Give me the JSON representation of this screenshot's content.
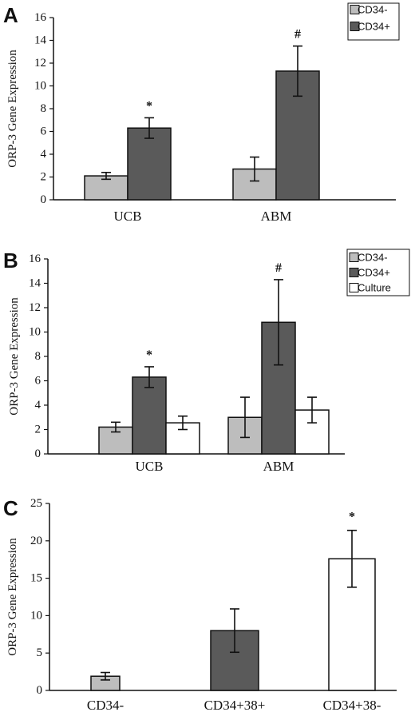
{
  "colors": {
    "light": "#bdbdbd",
    "dark": "#5a5a5a",
    "white": "#ffffff",
    "axis": "#111111"
  },
  "chart_data": [
    {
      "panel": "A",
      "type": "bar",
      "ylabel": "ORP-3 Gene Expression",
      "ylim": [
        0,
        16
      ],
      "yticks": [
        "0",
        "2",
        "4",
        "6",
        "8",
        "10",
        "12",
        "14",
        "16"
      ],
      "categories": [
        "UCB",
        "ABM"
      ],
      "series": [
        {
          "name": "CD34-",
          "color": "light",
          "values": [
            2.1,
            2.7
          ],
          "errors": [
            0.3,
            1.05
          ]
        },
        {
          "name": "CD34+",
          "color": "dark",
          "values": [
            6.3,
            11.3
          ],
          "errors": [
            0.9,
            2.2
          ]
        }
      ],
      "annotations": [
        {
          "category": 0,
          "series": 1,
          "text": "*"
        },
        {
          "category": 1,
          "series": 1,
          "text": "#"
        }
      ],
      "legend": "top-right"
    },
    {
      "panel": "B",
      "type": "bar",
      "ylabel": "ORP-3 Gene Expression",
      "ylim": [
        0,
        16
      ],
      "yticks": [
        "0",
        "2",
        "4",
        "6",
        "8",
        "10",
        "12",
        "14",
        "16"
      ],
      "categories": [
        "UCB",
        "ABM"
      ],
      "series": [
        {
          "name": "CD34-",
          "color": "light",
          "values": [
            2.2,
            3.0
          ],
          "errors": [
            0.4,
            1.65
          ]
        },
        {
          "name": "CD34+",
          "color": "dark",
          "values": [
            6.3,
            10.8
          ],
          "errors": [
            0.85,
            3.5
          ]
        },
        {
          "name": "Culture",
          "color": "white",
          "values": [
            2.55,
            3.6
          ],
          "errors": [
            0.55,
            1.05
          ]
        }
      ],
      "annotations": [
        {
          "category": 0,
          "series": 1,
          "text": "*"
        },
        {
          "category": 1,
          "series": 1,
          "text": "#"
        }
      ],
      "legend": "top-right"
    },
    {
      "panel": "C",
      "type": "bar",
      "ylabel": "ORP-3 Gene Expression",
      "ylim": [
        0,
        25
      ],
      "yticks": [
        "0",
        "5",
        "10",
        "15",
        "20",
        "25"
      ],
      "categories": [
        "CD34-",
        "CD34+38+",
        "CD34+38-"
      ],
      "bars": [
        {
          "value": 1.9,
          "error": 0.5,
          "color": "light"
        },
        {
          "value": 8.0,
          "error": 2.9,
          "color": "dark"
        },
        {
          "value": 17.6,
          "error": 3.8,
          "color": "white"
        }
      ],
      "annotations": [
        {
          "bar": 2,
          "text": "*"
        }
      ]
    }
  ]
}
